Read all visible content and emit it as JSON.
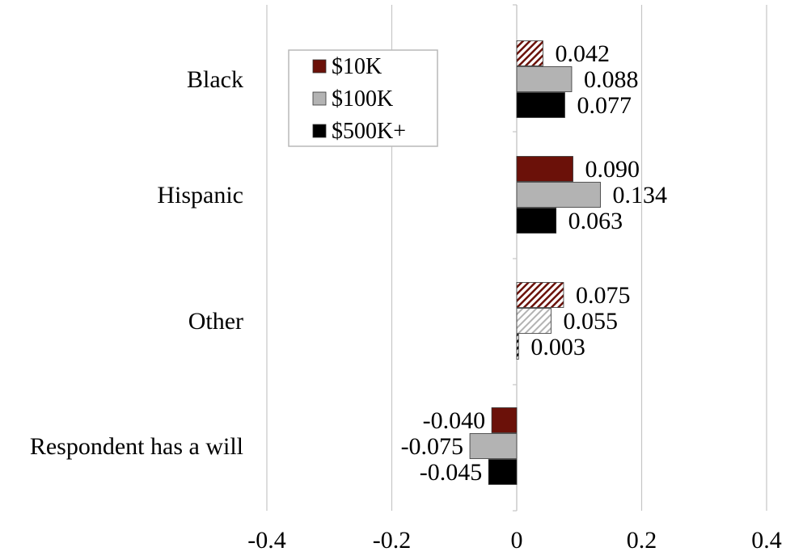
{
  "chart_data": {
    "type": "bar",
    "orientation": "horizontal",
    "categories": [
      "Black",
      "Hispanic",
      "Other",
      "Respondent has a will"
    ],
    "series": [
      {
        "name": "$10K",
        "color": "#6b1109",
        "values": [
          0.042,
          0.09,
          0.075,
          -0.04
        ],
        "hatched": [
          true,
          false,
          true,
          false
        ]
      },
      {
        "name": "$100K",
        "color": "#b3b3b3",
        "values": [
          0.088,
          0.134,
          0.055,
          -0.075
        ],
        "hatched": [
          false,
          false,
          true,
          false
        ]
      },
      {
        "name": "$500K+",
        "color": "#000000",
        "values": [
          0.077,
          0.063,
          0.003,
          -0.045
        ],
        "hatched": [
          false,
          false,
          true,
          false
        ]
      }
    ],
    "value_labels": [
      [
        "0.042",
        "0.088",
        "0.077"
      ],
      [
        "0.090",
        "0.134",
        "0.063"
      ],
      [
        "0.075",
        "0.055",
        "0.003"
      ],
      [
        "-0.040",
        "-0.075",
        "-0.045"
      ]
    ],
    "xlim": [
      -0.4,
      0.4
    ],
    "xticks": [
      -0.4,
      -0.2,
      0,
      0.2,
      0.4
    ],
    "xtick_labels": [
      "-0.4",
      "-0.2",
      "0",
      "0.2",
      "0.4"
    ],
    "grid": "vertical",
    "legend_position": "top-left",
    "title": "",
    "xlabel": "",
    "ylabel": ""
  }
}
